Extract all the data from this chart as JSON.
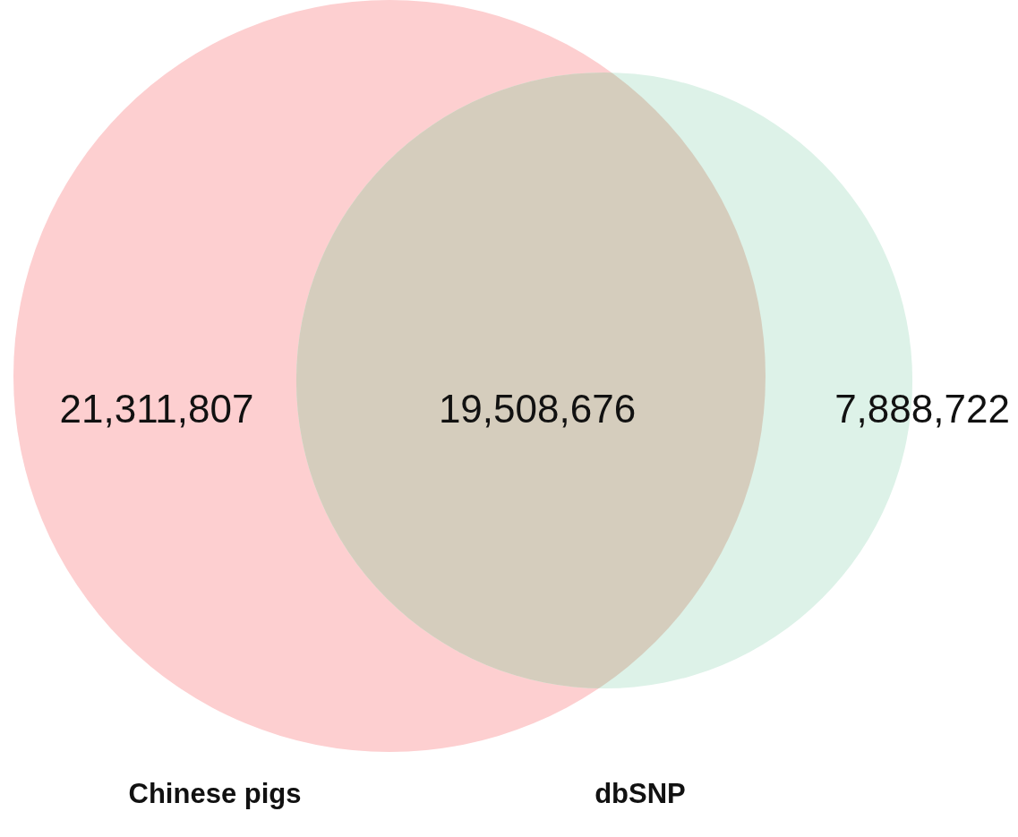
{
  "chart_data": {
    "type": "other",
    "categories": [
      null,
      null,
      null
    ],
    "values": [
      21311807,
      19508676,
      7888722
    ],
    "value_labels": [
      "21,311,807",
      "19,508,676",
      "7,888,722"
    ],
    "colors": [
      "#fdcfd0",
      "#d5cdbd",
      "#ddf2e8"
    ],
    "annotations": [
      "Chinese pigs",
      "dbSNP"
    ]
  }
}
